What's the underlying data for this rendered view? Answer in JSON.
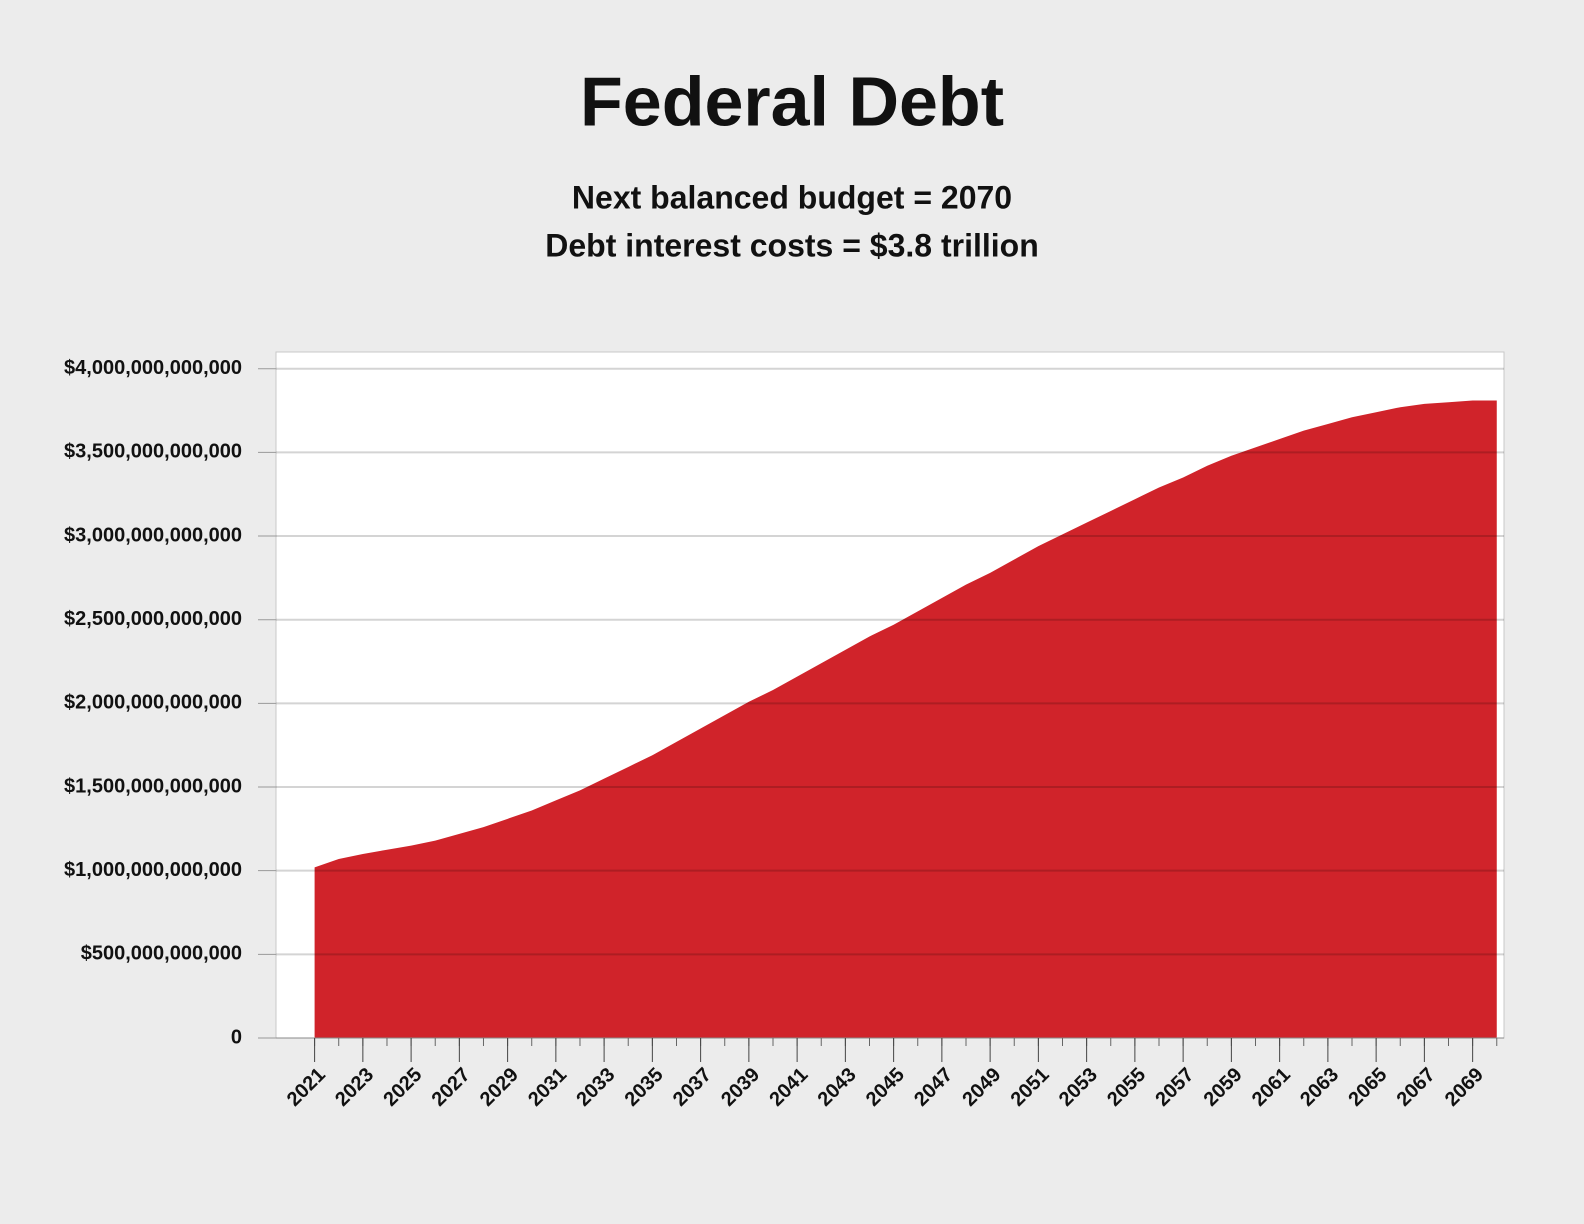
{
  "chart_data": {
    "type": "area",
    "title": "Federal Debt",
    "subtitle": [
      "Next balanced budget = 2070",
      "Debt interest costs = $3.8 trillion"
    ],
    "x": [
      2021,
      2022,
      2023,
      2024,
      2025,
      2026,
      2027,
      2028,
      2029,
      2030,
      2031,
      2032,
      2033,
      2034,
      2035,
      2036,
      2037,
      2038,
      2039,
      2040,
      2041,
      2042,
      2043,
      2044,
      2045,
      2046,
      2047,
      2048,
      2049,
      2050,
      2051,
      2052,
      2053,
      2054,
      2055,
      2056,
      2057,
      2058,
      2059,
      2060,
      2061,
      2062,
      2063,
      2064,
      2065,
      2066,
      2067,
      2068,
      2069,
      2070
    ],
    "values": [
      1020000000000,
      1070000000000,
      1100000000000,
      1125000000000,
      1150000000000,
      1180000000000,
      1220000000000,
      1260000000000,
      1310000000000,
      1360000000000,
      1420000000000,
      1480000000000,
      1550000000000,
      1620000000000,
      1690000000000,
      1770000000000,
      1850000000000,
      1930000000000,
      2010000000000,
      2080000000000,
      2160000000000,
      2240000000000,
      2320000000000,
      2400000000000,
      2470000000000,
      2550000000000,
      2630000000000,
      2710000000000,
      2780000000000,
      2860000000000,
      2940000000000,
      3010000000000,
      3080000000000,
      3150000000000,
      3220000000000,
      3290000000000,
      3350000000000,
      3420000000000,
      3480000000000,
      3530000000000,
      3580000000000,
      3630000000000,
      3670000000000,
      3710000000000,
      3740000000000,
      3770000000000,
      3790000000000,
      3800000000000,
      3810000000000,
      3810000000000
    ],
    "color": "#d0232a",
    "xlim": [
      2019.4,
      2070.3
    ],
    "xticks": [
      2021,
      2023,
      2025,
      2027,
      2029,
      2031,
      2033,
      2035,
      2037,
      2039,
      2041,
      2043,
      2045,
      2047,
      2049,
      2051,
      2053,
      2055,
      2057,
      2059,
      2061,
      2063,
      2065,
      2067,
      2069
    ],
    "ylim": [
      0,
      4100000000000
    ],
    "yticks": [
      0,
      {
        "value": 500000000000,
        "label": "$500,000,000,000"
      },
      {
        "value": 1000000000000,
        "label": "$1,000,000,000,000"
      },
      {
        "value": 1500000000000,
        "label": "$1,500,000,000,000"
      },
      {
        "value": 2000000000000,
        "label": "$2,000,000,000,000"
      },
      {
        "value": 2500000000000,
        "label": "$2,500,000,000,000"
      },
      {
        "value": 3000000000000,
        "label": "$3,000,000,000,000"
      },
      {
        "value": 3500000000000,
        "label": "$3,500,000,000,000"
      },
      {
        "value": 4000000000000,
        "label": "$4,000,000,000,000"
      }
    ],
    "grid": true
  }
}
